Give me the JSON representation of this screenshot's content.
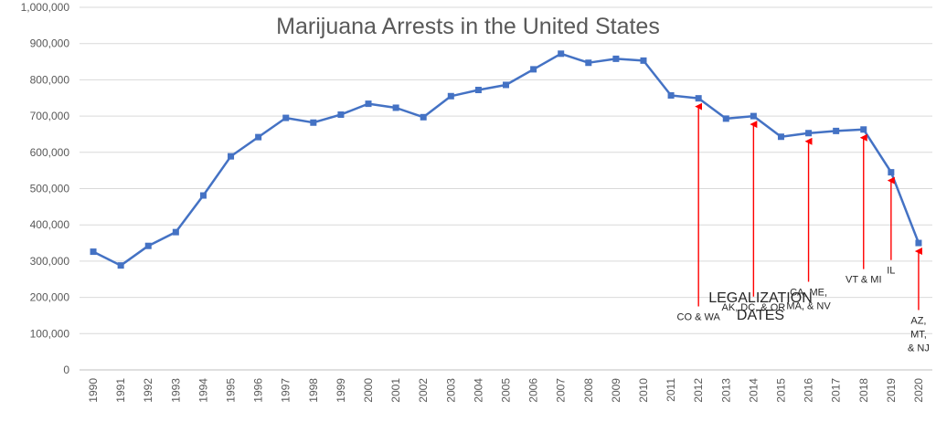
{
  "chart_data": {
    "type": "line",
    "title": "Marijuana Arrests in the United States",
    "xlabel": "",
    "ylabel": "",
    "ylim": [
      0,
      1000000
    ],
    "y_ticks": [
      "0",
      "100,000",
      "200,000",
      "300,000",
      "400,000",
      "500,000",
      "600,000",
      "700,000",
      "800,000",
      "900,000",
      "1,000,000"
    ],
    "y_tick_values": [
      0,
      100000,
      200000,
      300000,
      400000,
      500000,
      600000,
      700000,
      800000,
      900000,
      1000000
    ],
    "categories": [
      "1990",
      "1991",
      "1992",
      "1993",
      "1994",
      "1995",
      "1996",
      "1997",
      "1998",
      "1999",
      "2000",
      "2001",
      "2002",
      "2003",
      "2004",
      "2005",
      "2006",
      "2007",
      "2008",
      "2009",
      "2010",
      "2011",
      "2012",
      "2013",
      "2014",
      "2015",
      "2016",
      "2017",
      "2018",
      "2019",
      "2020"
    ],
    "values": [
      326000,
      288000,
      342000,
      380000,
      481000,
      589000,
      642000,
      695000,
      682000,
      704000,
      734000,
      723000,
      697000,
      755000,
      772000,
      786000,
      829000,
      872000,
      847000,
      858000,
      853000,
      757000,
      749000,
      693000,
      700000,
      643000,
      653000,
      659000,
      663000,
      545000,
      350000
    ],
    "grid": true,
    "line_color": "#4472C4",
    "arrow_color": "#FF0000",
    "annotations": [
      {
        "year": "2012",
        "lines": [
          "CO & WA"
        ],
        "value": 749000,
        "arrow_to": 175000
      },
      {
        "year": "2014",
        "lines": [
          "AK, DC, & OR"
        ],
        "value": 700000,
        "arrow_to": 202000
      },
      {
        "year": "2016",
        "lines": [
          "CA, ME,",
          "MA, & NV"
        ],
        "value": 653000,
        "arrow_to": 243000
      },
      {
        "year": "2018",
        "lines": [
          "VT & MI"
        ],
        "value": 663000,
        "arrow_to": 278000
      },
      {
        "year": "2019",
        "lines": [
          "IL"
        ],
        "value": 545000,
        "arrow_to": 303000
      },
      {
        "year": "2020",
        "lines": [
          "AZ,",
          "MT,",
          "& NJ"
        ],
        "value": 350000,
        "arrow_to": 165000
      }
    ],
    "legalization_label": [
      "LEGALIZATION",
      "DATES"
    ]
  }
}
